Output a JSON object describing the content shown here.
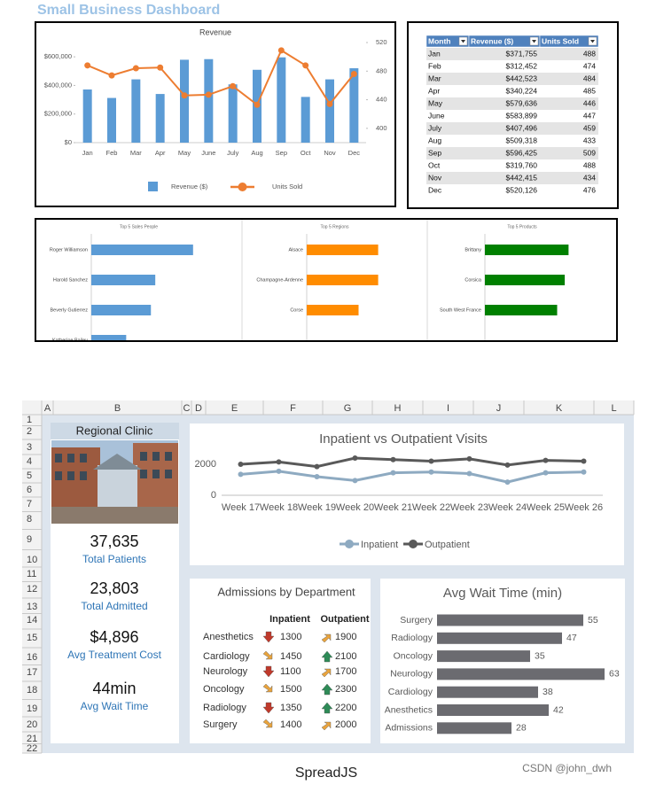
{
  "dashboard": {
    "title": "Small Business Dashboard",
    "revenue_chart": {
      "type": "combo",
      "title": "Revenue",
      "categories": [
        "Jan",
        "Feb",
        "Mar",
        "Apr",
        "May",
        "June",
        "July",
        "Aug",
        "Sep",
        "Oct",
        "Nov",
        "Dec"
      ],
      "series": [
        {
          "name": "Revenue ($)",
          "type": "bar",
          "color": "#5b9bd5",
          "values": [
            371755,
            312452,
            442523,
            340224,
            579636,
            583899,
            407496,
            509318,
            596425,
            319760,
            442415,
            520126
          ]
        },
        {
          "name": "Units Sold",
          "type": "line",
          "color": "#ed7d31",
          "axis": "y2",
          "values": [
            488,
            474,
            484,
            485,
            446,
            447,
            459,
            433,
            509,
            488,
            434,
            476
          ]
        }
      ],
      "ylim": [
        0,
        700000
      ],
      "yticks": [
        {
          "value": 0,
          "label": "$0"
        },
        {
          "value": 200000,
          "label": "$200,000"
        },
        {
          "value": 400000,
          "label": "$400,000"
        },
        {
          "value": 600000,
          "label": "$600,000"
        }
      ],
      "y2lim": [
        380,
        520
      ],
      "y2ticks": [
        400,
        440,
        480,
        520
      ],
      "legend": "bottom"
    },
    "table": {
      "columns": [
        "Month",
        "Revenue ($)",
        "Units Sold"
      ],
      "rows": [
        [
          "Jan",
          "$371,755",
          488
        ],
        [
          "Feb",
          "$312,452",
          474
        ],
        [
          "Mar",
          "$442,523",
          484
        ],
        [
          "Apr",
          "$340,224",
          485
        ],
        [
          "May",
          "$579,636",
          446
        ],
        [
          "June",
          "$583,899",
          447
        ],
        [
          "July",
          "$407,496",
          459
        ],
        [
          "Aug",
          "$509,318",
          433
        ],
        [
          "Sep",
          "$596,425",
          509
        ],
        [
          "Oct",
          "$319,760",
          488
        ],
        [
          "Nov",
          "$442,415",
          434
        ],
        [
          "Dec",
          "$520,126",
          476
        ]
      ]
    },
    "top_charts": [
      {
        "type": "bar",
        "orientation": "horizontal",
        "title": "Top 5 Sales People",
        "categories": [
          "Roger Williamson",
          "Harold Sanchez",
          "Beverly Gutierrez",
          "Katherine Bailey"
        ],
        "values": [
          70,
          44,
          41,
          24
        ],
        "color": "#5b9bd5",
        "xlim": [
          0,
          100
        ]
      },
      {
        "type": "bar",
        "orientation": "horizontal",
        "title": "Top 5 Regions",
        "categories": [
          "Alsace",
          "Champagne-Ardenne",
          "Corse"
        ],
        "values": [
          62,
          62,
          45
        ],
        "color": "#ff8c00",
        "xlim": [
          0,
          100
        ]
      },
      {
        "type": "bar",
        "orientation": "horizontal",
        "title": "Top 5 Products",
        "categories": [
          "Brittany",
          "Corsica",
          "South West France"
        ],
        "values": [
          66,
          63,
          57
        ],
        "color": "#008000",
        "xlim": [
          0,
          100
        ]
      }
    ]
  },
  "spreadsheet": {
    "columns": [
      "A",
      "B",
      "C",
      "D",
      "E",
      "F",
      "G",
      "H",
      "I",
      "J",
      "K",
      "L"
    ],
    "rows": [
      1,
      2,
      3,
      4,
      5,
      6,
      7,
      8,
      9,
      10,
      11,
      12,
      13,
      14,
      15,
      16,
      17,
      18,
      19,
      20,
      21,
      22
    ],
    "clinic": {
      "title": "Regional Clinic",
      "stats": [
        {
          "value": "37,635",
          "label": "Total Patients"
        },
        {
          "value": "23,803",
          "label": "Total Admitted"
        },
        {
          "value": "$4,896",
          "label": "Avg Treatment Cost"
        },
        {
          "value": "44min",
          "label": "Avg Wait Time"
        }
      ]
    },
    "visits_chart": {
      "type": "line",
      "title": "Inpatient vs Outpatient Visits",
      "categories": [
        "Week 17",
        "Week 18",
        "Week 19",
        "Week 20",
        "Week 21",
        "Week 22",
        "Week 23",
        "Week 24",
        "Week 25",
        "Week 26"
      ],
      "series": [
        {
          "name": "Inpatient",
          "color": "#8eaac1",
          "values": [
            1350,
            1550,
            1200,
            950,
            1450,
            1500,
            1400,
            850,
            1450,
            1500
          ]
        },
        {
          "name": "Outpatient",
          "color": "#595959",
          "values": [
            2000,
            2150,
            1850,
            2400,
            2300,
            2200,
            2350,
            1950,
            2250,
            2200
          ]
        }
      ],
      "ylim": [
        0,
        2800
      ],
      "yticks": [
        0,
        2000
      ],
      "legend": "bottom"
    },
    "admissions": {
      "title": "Admissions by Department",
      "columns": [
        "Inpatient",
        "Outpatient"
      ],
      "rows": [
        {
          "department": "Anesthetics",
          "inpatient": 1300,
          "outpatient": 1900
        },
        {
          "department": "Cardiology",
          "inpatient": 1450,
          "outpatient": 2100
        },
        {
          "department": "Neurology",
          "inpatient": 1100,
          "outpatient": 1700
        },
        {
          "department": "Oncology",
          "inpatient": 1500,
          "outpatient": 2300
        },
        {
          "department": "Radiology",
          "inpatient": 1350,
          "outpatient": 2200
        },
        {
          "department": "Surgery",
          "inpatient": 1400,
          "outpatient": 2000
        }
      ]
    },
    "wait_chart": {
      "type": "bar",
      "orientation": "horizontal",
      "title": "Avg Wait Time (min)",
      "categories": [
        "Surgery",
        "Radiology",
        "Oncology",
        "Neurology",
        "Cardiology",
        "Anesthetics",
        "Admissions"
      ],
      "values": [
        55,
        47,
        35,
        63,
        38,
        42,
        28
      ],
      "color": "#6b6b70",
      "xlim": [
        0,
        70
      ],
      "data_labels": true
    }
  },
  "caption": "SpreadJS",
  "watermark": "CSDN @john_dwh"
}
